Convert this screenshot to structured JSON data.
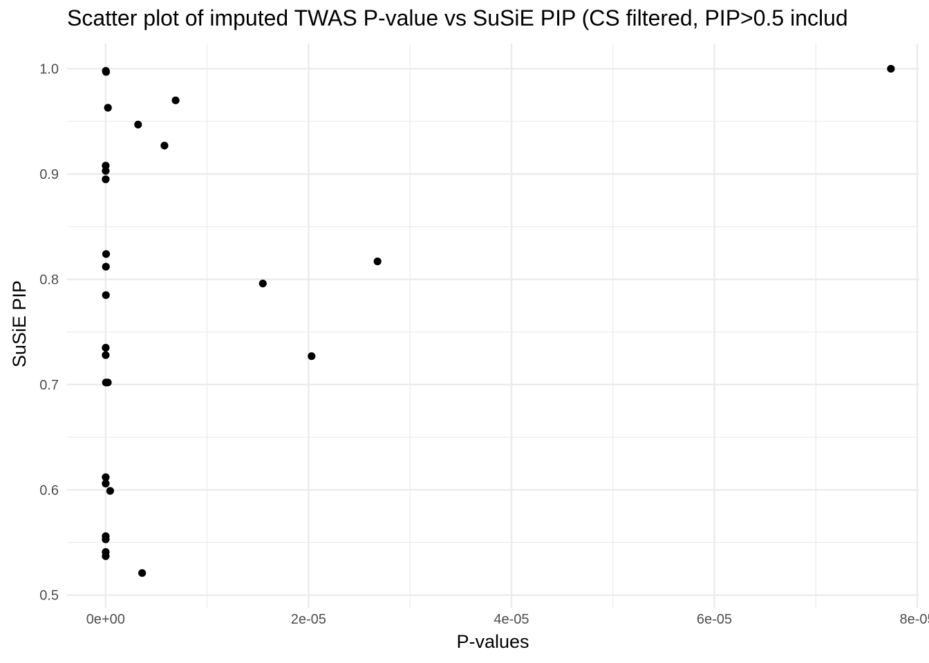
{
  "chart_data": {
    "type": "scatter",
    "title": "Scatter plot of imputed TWAS P-value vs SuSiE PIP (CS filtered, PIP>0.5 includ",
    "xlabel": "P-values",
    "ylabel": "SuSiE PIP",
    "xlim": [
      -3.8e-06,
      8.02e-05
    ],
    "ylim": [
      0.488,
      1.024
    ],
    "x_ticks": [
      0,
      2e-05,
      4e-05,
      6e-05,
      8e-05
    ],
    "x_tick_labels": [
      "0e+00",
      "2e-05",
      "4e-05",
      "6e-05",
      "8e-05"
    ],
    "x_minor_ticks": [
      1e-05,
      3e-05,
      5e-05,
      7e-05
    ],
    "y_ticks": [
      0.5,
      0.6,
      0.7,
      0.8,
      0.9,
      1.0
    ],
    "y_tick_labels": [
      "0.5",
      "0.6",
      "0.7",
      "0.8",
      "0.9",
      "1.0"
    ],
    "y_minor_ticks": [
      0.55,
      0.65,
      0.75,
      0.85,
      0.95
    ],
    "grid": true,
    "point_color": "#000000",
    "series": [
      {
        "points": [
          {
            "x": 7.74e-05,
            "y": 1.0
          },
          {
            "x": 2e-08,
            "y": 0.998
          },
          {
            "x": 5e-08,
            "y": 0.997
          },
          {
            "x": 2.3e-07,
            "y": 0.963
          },
          {
            "x": 6.9e-06,
            "y": 0.97
          },
          {
            "x": 3.2e-06,
            "y": 0.947
          },
          {
            "x": 5.8e-06,
            "y": 0.927
          },
          {
            "x": 1e-08,
            "y": 0.908
          },
          {
            "x": 1e-08,
            "y": 0.903
          },
          {
            "x": 1e-08,
            "y": 0.895
          },
          {
            "x": 5e-08,
            "y": 0.824
          },
          {
            "x": 3e-08,
            "y": 0.812
          },
          {
            "x": 2.68e-05,
            "y": 0.817
          },
          {
            "x": 1.55e-05,
            "y": 0.796
          },
          {
            "x": 3e-08,
            "y": 0.785
          },
          {
            "x": 1e-08,
            "y": 0.735
          },
          {
            "x": 1e-08,
            "y": 0.728
          },
          {
            "x": 2.03e-05,
            "y": 0.727
          },
          {
            "x": 3e-08,
            "y": 0.702
          },
          {
            "x": 2.2e-07,
            "y": 0.702
          },
          {
            "x": 1e-08,
            "y": 0.612
          },
          {
            "x": 1e-08,
            "y": 0.606
          },
          {
            "x": 4.5e-07,
            "y": 0.599
          },
          {
            "x": 1e-08,
            "y": 0.556
          },
          {
            "x": 1e-08,
            "y": 0.553
          },
          {
            "x": 1e-08,
            "y": 0.541
          },
          {
            "x": 1e-08,
            "y": 0.537
          },
          {
            "x": 3.6e-06,
            "y": 0.521
          }
        ]
      }
    ]
  }
}
